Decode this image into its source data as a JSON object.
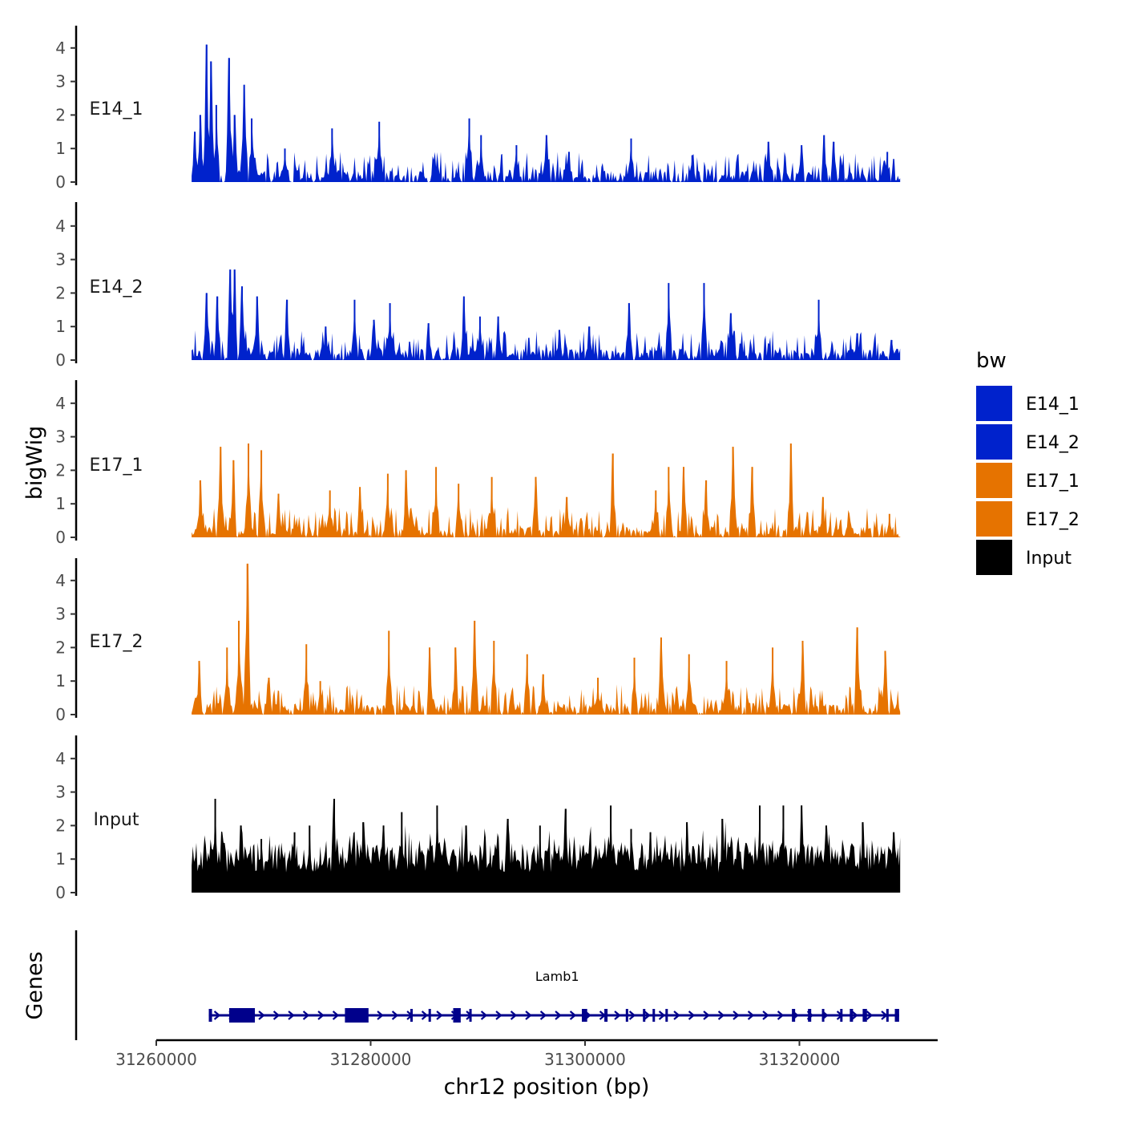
{
  "chart_data": {
    "type": "area",
    "subtype": "genome-browser tracks",
    "x_axis": {
      "label": "chr12 position (bp)",
      "ticks": [
        31260000,
        31280000,
        31300000,
        31320000
      ],
      "tick_labels": [
        "31260000",
        "31280000",
        "31300000",
        "31320000"
      ],
      "range": [
        31260000,
        31330000
      ],
      "data_range": [
        31263300,
        31329400
      ]
    },
    "y_axis": {
      "label": "bigWig",
      "ticks": [
        0,
        1,
        2,
        3,
        4
      ],
      "tick_labels": [
        "0",
        "1",
        "2",
        "3",
        "4"
      ],
      "range": [
        0,
        4.7
      ]
    },
    "tracks": [
      {
        "name": "E14_1",
        "color": "#0022CC",
        "peaks": [
          [
            31263600,
            1.5
          ],
          [
            31264100,
            2.0
          ],
          [
            31264700,
            4.1
          ],
          [
            31265100,
            3.6
          ],
          [
            31265600,
            2.3
          ],
          [
            31266800,
            3.7
          ],
          [
            31267300,
            2.0
          ],
          [
            31268200,
            2.9
          ],
          [
            31268900,
            1.9
          ],
          [
            31272000,
            1.0
          ],
          [
            31276400,
            1.6
          ],
          [
            31280800,
            1.8
          ],
          [
            31289200,
            1.9
          ],
          [
            31290300,
            1.4
          ],
          [
            31293600,
            1.1
          ],
          [
            31296400,
            1.4
          ],
          [
            31298500,
            0.9
          ],
          [
            31304300,
            1.3
          ],
          [
            31310000,
            0.8
          ],
          [
            31317100,
            1.2
          ],
          [
            31320200,
            1.1
          ],
          [
            31322300,
            1.4
          ],
          [
            31323200,
            1.2
          ],
          [
            31328200,
            0.9
          ]
        ]
      },
      {
        "name": "E14_2",
        "color": "#0022CC",
        "peaks": [
          [
            31264700,
            2.0
          ],
          [
            31265700,
            1.9
          ],
          [
            31266900,
            2.7
          ],
          [
            31267300,
            2.7
          ],
          [
            31268000,
            2.2
          ],
          [
            31269400,
            1.9
          ],
          [
            31272200,
            1.8
          ],
          [
            31275800,
            1.0
          ],
          [
            31278500,
            1.8
          ],
          [
            31280300,
            1.2
          ],
          [
            31281800,
            1.7
          ],
          [
            31285400,
            1.1
          ],
          [
            31288700,
            1.9
          ],
          [
            31290200,
            1.3
          ],
          [
            31291900,
            1.3
          ],
          [
            31297600,
            0.9
          ],
          [
            31300400,
            1.0
          ],
          [
            31304100,
            1.7
          ],
          [
            31307800,
            2.3
          ],
          [
            31311100,
            2.3
          ],
          [
            31313600,
            1.4
          ],
          [
            31321800,
            1.8
          ],
          [
            31325400,
            0.8
          ],
          [
            31328600,
            0.6
          ]
        ]
      },
      {
        "name": "E17_1",
        "color": "#E67300",
        "peaks": [
          [
            31264100,
            1.7
          ],
          [
            31266000,
            2.7
          ],
          [
            31267200,
            2.3
          ],
          [
            31268600,
            2.8
          ],
          [
            31269800,
            2.6
          ],
          [
            31271400,
            1.3
          ],
          [
            31276200,
            1.4
          ],
          [
            31279000,
            1.5
          ],
          [
            31281600,
            1.9
          ],
          [
            31283300,
            2.0
          ],
          [
            31286100,
            2.1
          ],
          [
            31288200,
            1.6
          ],
          [
            31291300,
            1.8
          ],
          [
            31295400,
            1.8
          ],
          [
            31298300,
            1.2
          ],
          [
            31302600,
            2.5
          ],
          [
            31306600,
            1.4
          ],
          [
            31307800,
            2.1
          ],
          [
            31309200,
            2.1
          ],
          [
            31311300,
            1.7
          ],
          [
            31313800,
            2.7
          ],
          [
            31315600,
            2.1
          ],
          [
            31319200,
            2.8
          ],
          [
            31322200,
            1.2
          ],
          [
            31328400,
            0.7
          ]
        ]
      },
      {
        "name": "E17_2",
        "color": "#E67300",
        "peaks": [
          [
            31264000,
            1.6
          ],
          [
            31266600,
            2.0
          ],
          [
            31267700,
            2.8
          ],
          [
            31268500,
            4.5
          ],
          [
            31270500,
            1.1
          ],
          [
            31274000,
            2.1
          ],
          [
            31275300,
            1.0
          ],
          [
            31281700,
            2.5
          ],
          [
            31285500,
            2.0
          ],
          [
            31287900,
            2.0
          ],
          [
            31289700,
            2.8
          ],
          [
            31291500,
            2.2
          ],
          [
            31294600,
            1.8
          ],
          [
            31296100,
            1.2
          ],
          [
            31301200,
            1.1
          ],
          [
            31304600,
            1.7
          ],
          [
            31307100,
            2.3
          ],
          [
            31309700,
            1.8
          ],
          [
            31313200,
            1.6
          ],
          [
            31317500,
            2.0
          ],
          [
            31320300,
            2.2
          ],
          [
            31325400,
            2.6
          ],
          [
            31328000,
            1.9
          ]
        ]
      },
      {
        "name": "Input",
        "color": "#000000",
        "peaks": [
          [
            31265500,
            2.8
          ],
          [
            31267900,
            2.0
          ],
          [
            31269800,
            1.6
          ],
          [
            31272900,
            1.8
          ],
          [
            31274300,
            2.0
          ],
          [
            31276600,
            2.8
          ],
          [
            31279300,
            2.1
          ],
          [
            31281200,
            2.0
          ],
          [
            31282900,
            2.4
          ],
          [
            31286200,
            2.6
          ],
          [
            31288900,
            2.0
          ],
          [
            31292800,
            2.2
          ],
          [
            31295800,
            2.0
          ],
          [
            31298200,
            2.5
          ],
          [
            31302400,
            2.6
          ],
          [
            31304300,
            1.9
          ],
          [
            31306100,
            1.8
          ],
          [
            31309500,
            2.1
          ],
          [
            31312800,
            2.2
          ],
          [
            31316300,
            2.6
          ],
          [
            31318500,
            2.6
          ],
          [
            31320200,
            2.6
          ],
          [
            31322500,
            2.0
          ],
          [
            31325900,
            2.1
          ],
          [
            31328800,
            1.8
          ]
        ]
      }
    ],
    "genes": {
      "label": "Genes",
      "features": [
        {
          "name": "Lamb1",
          "start": 31264900,
          "end": 31329300,
          "strand": "+",
          "color": "#00008B",
          "exons": [
            [
              31264900,
              31265200
            ],
            [
              31266800,
              31269200
            ],
            [
              31277600,
              31279800
            ],
            [
              31283700,
              31283800
            ],
            [
              31285400,
              31285500
            ],
            [
              31287700,
              31288400
            ],
            [
              31289200,
              31289300
            ],
            [
              31299700,
              31300200
            ],
            [
              31301800,
              31302100
            ],
            [
              31303800,
              31304000
            ],
            [
              31305400,
              31305500
            ],
            [
              31306300,
              31306400
            ],
            [
              31307500,
              31307600
            ],
            [
              31319300,
              31319600
            ],
            [
              31320800,
              31321100
            ],
            [
              31322100,
              31322200
            ],
            [
              31323800,
              31324000
            ],
            [
              31324700,
              31325000
            ],
            [
              31325900,
              31326300
            ],
            [
              31328100,
              31328300
            ],
            [
              31328900,
              31329300
            ]
          ]
        }
      ]
    },
    "legend": {
      "title": "bw",
      "position": "right",
      "entries": [
        {
          "label": "E14_1",
          "color": "#0022CC"
        },
        {
          "label": "E14_2",
          "color": "#0022CC"
        },
        {
          "label": "E17_1",
          "color": "#E67300"
        },
        {
          "label": "E17_2",
          "color": "#E67300"
        },
        {
          "label": "Input",
          "color": "#000000"
        }
      ]
    },
    "grid": false
  }
}
